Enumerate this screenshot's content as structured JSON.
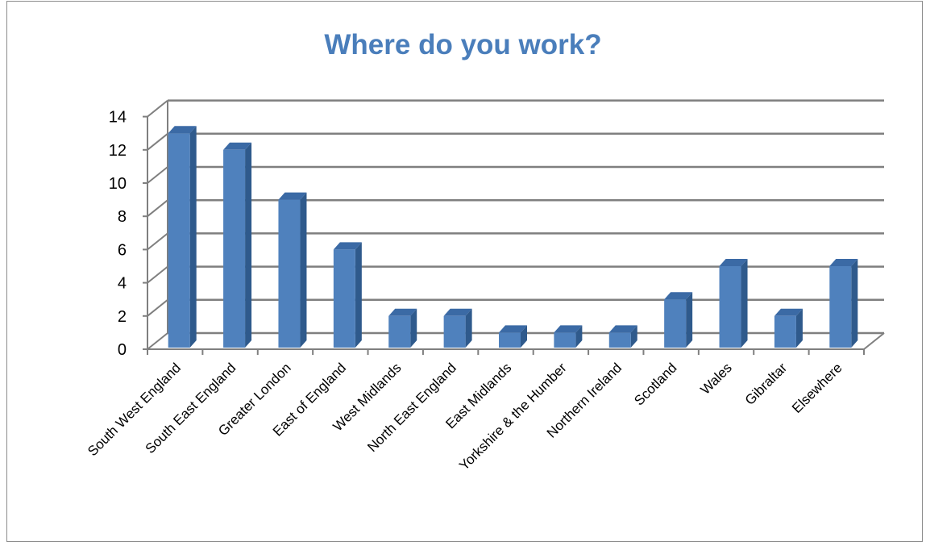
{
  "chart_data": {
    "type": "bar",
    "title": "Where do you work?",
    "categories": [
      "South West England",
      "South East England",
      "Greater London",
      "East of England",
      "West Midlands",
      "North East England",
      "East Midlands",
      "Yorkshire & the Humber",
      "Northern Ireland",
      "Scotland",
      "Wales",
      "Gibraltar",
      "Elsewhere"
    ],
    "values": [
      13,
      12,
      9,
      6,
      2,
      2,
      1,
      1,
      1,
      3,
      5,
      2,
      5
    ],
    "xlabel": "",
    "ylabel": "",
    "ylim": [
      0,
      14
    ],
    "yticks": [
      0,
      2,
      4,
      6,
      8,
      10,
      12,
      14
    ],
    "grid": true,
    "legend": "none",
    "style": "3d-column",
    "colors": {
      "bar_front": "#4f81bd",
      "bar_side": "#2f5a8c",
      "bar_top": "#3b6aa5",
      "title": "#4a7ebb",
      "gridline": "#7f7f7f"
    }
  }
}
